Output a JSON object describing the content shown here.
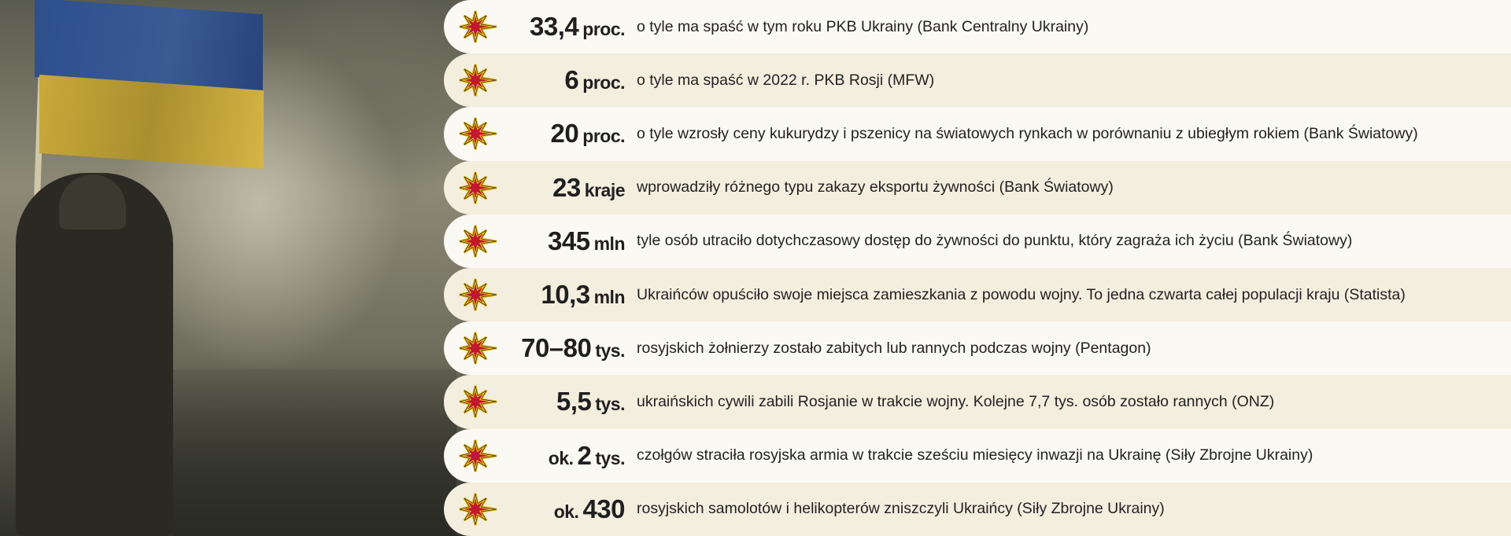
{
  "colors": {
    "star_fill": "#c0182e",
    "star_outline": "#f2c21b",
    "row_light": "#fbf9f4",
    "row_dark": "#f4eedf",
    "flag_blue": "#2d4f8c",
    "flag_yellow": "#c9a93a"
  },
  "stats": [
    {
      "prefix": "",
      "value": "33,4",
      "unit": "proc.",
      "text": "o tyle ma spaść w tym roku PKB Ukrainy (Bank Centralny Ukrainy)"
    },
    {
      "prefix": "",
      "value": "6",
      "unit": "proc.",
      "text": "o tyle ma spaść w 2022 r. PKB Rosji (MFW)"
    },
    {
      "prefix": "",
      "value": "20",
      "unit": "proc.",
      "text": "o tyle wzrosły ceny kukurydzy i pszenicy na światowych rynkach w porównaniu z ubiegłym rokiem (Bank Światowy)"
    },
    {
      "prefix": "",
      "value": "23",
      "unit": "kraje",
      "text": "wprowadziły różnego typu zakazy eksportu żywności (Bank Światowy)"
    },
    {
      "prefix": "",
      "value": "345",
      "unit": "mln",
      "text": "tyle osób utraciło dotychczasowy dostęp do żywności do punktu, który zagraża ich życiu (Bank Światowy)"
    },
    {
      "prefix": "",
      "value": "10,3",
      "unit": "mln",
      "text": "Ukraińców opuściło swoje miejsca zamieszkania z powodu wojny. To jedna czwarta całej populacji kraju (Statista)"
    },
    {
      "prefix": "",
      "value": "70–80",
      "unit": "tys.",
      "text": "rosyjskich żołnierzy zostało zabitych lub rannych podczas wojny (Pentagon)"
    },
    {
      "prefix": "",
      "value": "5,5",
      "unit": "tys.",
      "text": "ukraińskich cywili zabili Rosjanie w trakcie wojny. Kolejne 7,7 tys. osób zostało rannych (ONZ)"
    },
    {
      "prefix": "ok.",
      "value": "2",
      "unit": "tys.",
      "text": "czołgów straciła rosyjska armia w trakcie sześciu miesięcy inwazji na Ukrainę (Siły Zbrojne Ukrainy)"
    },
    {
      "prefix": "ok.",
      "value": "430",
      "unit": "",
      "text": "rosyjskich samolotów i helikopterów zniszczyli Ukraińcy (Siły Zbrojne Ukrainy)"
    }
  ]
}
